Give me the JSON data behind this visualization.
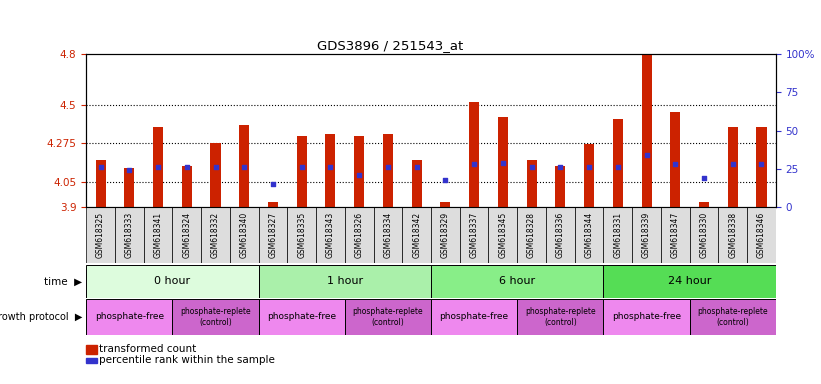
{
  "title": "GDS3896 / 251543_at",
  "samples": [
    "GSM618325",
    "GSM618333",
    "GSM618341",
    "GSM618324",
    "GSM618332",
    "GSM618340",
    "GSM618327",
    "GSM618335",
    "GSM618343",
    "GSM618326",
    "GSM618334",
    "GSM618342",
    "GSM618329",
    "GSM618337",
    "GSM618345",
    "GSM618328",
    "GSM618336",
    "GSM618344",
    "GSM618331",
    "GSM618339",
    "GSM618347",
    "GSM618330",
    "GSM618338",
    "GSM618346"
  ],
  "transformed_count": [
    4.18,
    4.13,
    4.37,
    4.14,
    4.28,
    4.38,
    3.93,
    4.32,
    4.33,
    4.32,
    4.33,
    4.18,
    3.93,
    4.52,
    4.43,
    4.18,
    4.14,
    4.27,
    4.42,
    4.82,
    4.46,
    3.93,
    4.37,
    4.37
  ],
  "percentile_rank": [
    26,
    24,
    26,
    26,
    26,
    26,
    15,
    26,
    26,
    21,
    26,
    26,
    18,
    28,
    29,
    26,
    26,
    26,
    26,
    34,
    28,
    19,
    28,
    28
  ],
  "ylim_left": [
    3.9,
    4.8
  ],
  "ylim_right": [
    0,
    100
  ],
  "yticks_left": [
    3.9,
    4.05,
    4.275,
    4.5,
    4.8
  ],
  "yticks_right": [
    0,
    25,
    50,
    75,
    100
  ],
  "hlines": [
    4.05,
    4.275,
    4.5
  ],
  "bar_color": "#cc2200",
  "dot_color": "#3333cc",
  "bar_bottom": 3.9,
  "time_groups": [
    {
      "label": "0 hour",
      "start": 0,
      "end": 6,
      "color": "#ddfcdd"
    },
    {
      "label": "1 hour",
      "start": 6,
      "end": 12,
      "color": "#aaf0aa"
    },
    {
      "label": "6 hour",
      "start": 12,
      "end": 18,
      "color": "#88ee88"
    },
    {
      "label": "24 hour",
      "start": 18,
      "end": 24,
      "color": "#55dd55"
    }
  ],
  "protocol_groups": [
    {
      "label": "phosphate-free",
      "start": 0,
      "end": 3,
      "color": "#ee88ee",
      "fontsize": 6.5
    },
    {
      "label": "phosphate-replete\n(control)",
      "start": 3,
      "end": 6,
      "color": "#cc66cc",
      "fontsize": 5.5
    },
    {
      "label": "phosphate-free",
      "start": 6,
      "end": 9,
      "color": "#ee88ee",
      "fontsize": 6.5
    },
    {
      "label": "phosphate-replete\n(control)",
      "start": 9,
      "end": 12,
      "color": "#cc66cc",
      "fontsize": 5.5
    },
    {
      "label": "phosphate-free",
      "start": 12,
      "end": 15,
      "color": "#ee88ee",
      "fontsize": 6.5
    },
    {
      "label": "phosphate-replete\n(control)",
      "start": 15,
      "end": 18,
      "color": "#cc66cc",
      "fontsize": 5.5
    },
    {
      "label": "phosphate-free",
      "start": 18,
      "end": 21,
      "color": "#ee88ee",
      "fontsize": 6.5
    },
    {
      "label": "phosphate-replete\n(control)",
      "start": 21,
      "end": 24,
      "color": "#cc66cc",
      "fontsize": 5.5
    }
  ],
  "legend_bar_label": "transformed count",
  "legend_dot_label": "percentile rank within the sample",
  "right_axis_color": "#3333cc",
  "left_axis_color": "#cc2200",
  "bg_color": "#ffffff",
  "plot_bg_color": "#ffffff",
  "label_bg_color": "#dddddd"
}
